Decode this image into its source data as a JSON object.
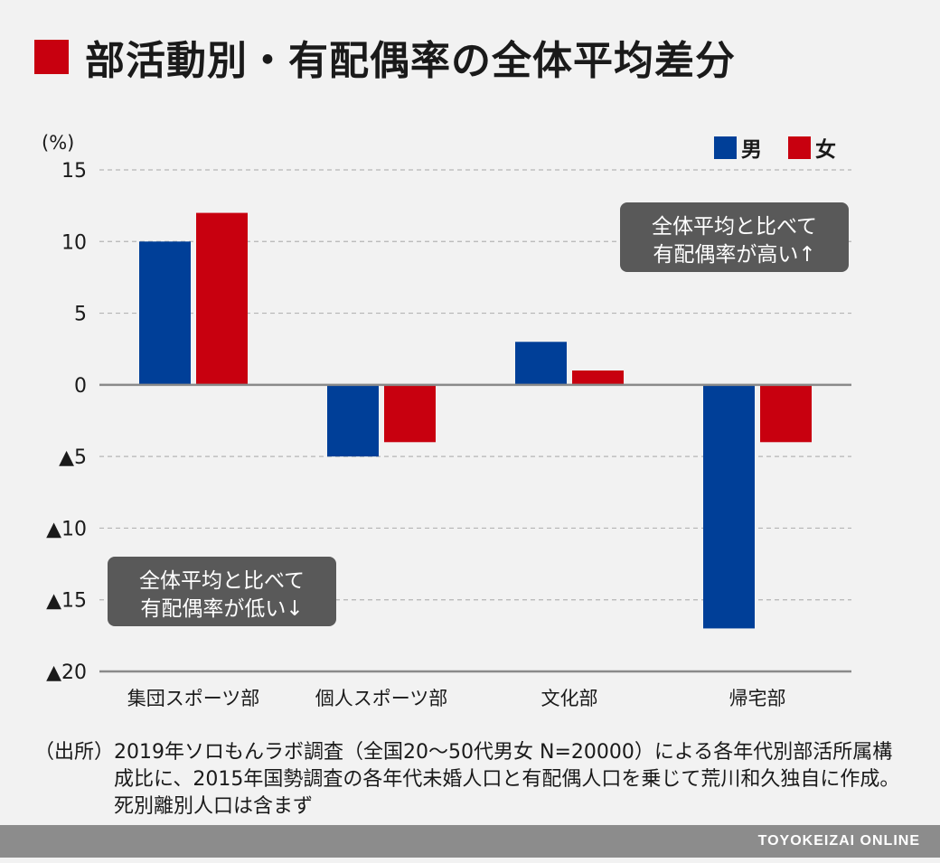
{
  "title": "部活動別・有配偶率の全体平均差分",
  "colors": {
    "male": "#003f98",
    "female": "#c8000f",
    "title_accent": "#c8000f"
  },
  "chart_data": {
    "type": "bar",
    "unit_label": "(%)",
    "categories": [
      "集団スポーツ部",
      "個人スポーツ部",
      "文化部",
      "帰宅部"
    ],
    "series": [
      {
        "name": "男",
        "values": [
          10,
          -5,
          3,
          -17
        ]
      },
      {
        "name": "女",
        "values": [
          12,
          -4,
          1,
          -4
        ]
      }
    ],
    "ylim": [
      -20,
      15
    ],
    "yticks": [
      15,
      10,
      5,
      0,
      -5,
      -10,
      -15,
      -20
    ],
    "ytick_labels": [
      "15",
      "10",
      "5",
      "0",
      "▲5",
      "▲10",
      "▲15",
      "▲20"
    ],
    "grid": true,
    "legend": "top-right",
    "annotations": {
      "high": [
        "全体平均と比べて",
        "有配偶率が高い↑"
      ],
      "low": [
        "全体平均と比べて",
        "有配偶率が低い↓"
      ]
    }
  },
  "note": {
    "label": "（出所）",
    "text": "2019年ソロもんラボ調査（全国20〜50代男女 N=20000）による各年代別部活所属構成比に、2015年国勢調査の各年代未婚人口と有配偶人口を乗じて荒川和久独自に作成。死別離別人口は含まず"
  },
  "footer": "TOYOKEIZAI ONLINE"
}
